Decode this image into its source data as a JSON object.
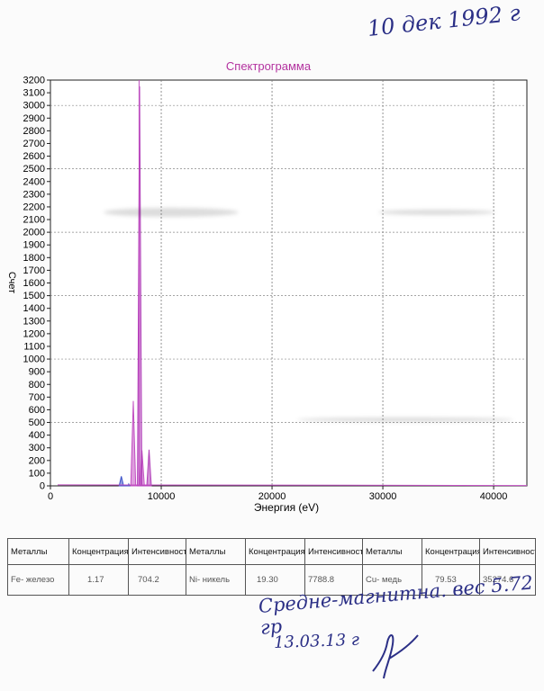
{
  "handwriting": {
    "top_date": "10 дек 1992 г",
    "note": "Средне-магнитна. вес 5.72 гр",
    "bottom_date": "13.03.13 г"
  },
  "colors": {
    "fe": "#3b52c9",
    "ni": "#c24fc2",
    "cu": "#b03cb8",
    "title": "#b3329f"
  },
  "chart_data": {
    "type": "line",
    "title": "Спектрограмма",
    "xlabel": "Энергия (eV)",
    "ylabel": "Счет",
    "xlim": [
      0,
      43000
    ],
    "ylim": [
      0,
      3200
    ],
    "x_ticks": [
      0,
      10000,
      20000,
      30000,
      40000
    ],
    "y_ticks": [
      0,
      100,
      200,
      300,
      400,
      500,
      600,
      700,
      800,
      900,
      1000,
      1100,
      1200,
      1300,
      1400,
      1500,
      1600,
      1700,
      1800,
      1900,
      2000,
      2100,
      2200,
      2300,
      2400,
      2500,
      2600,
      2700,
      2800,
      2900,
      3000,
      3100,
      3200
    ],
    "grid": true,
    "marker_x": 8000,
    "series": [
      {
        "color": "#3b52c9",
        "points": [
          [
            6200,
            0
          ],
          [
            6400,
            75
          ],
          [
            6600,
            0
          ],
          [
            7000,
            0
          ],
          [
            7060,
            15
          ],
          [
            7150,
            0
          ]
        ]
      },
      {
        "color": "#c24fc2",
        "points": [
          [
            7250,
            0
          ],
          [
            7480,
            670
          ],
          [
            7700,
            0
          ],
          [
            8050,
            0
          ],
          [
            8260,
            280
          ],
          [
            8480,
            0
          ]
        ]
      },
      {
        "color": "#b03cb8",
        "points": [
          [
            7850,
            0
          ],
          [
            8050,
            3150
          ],
          [
            8250,
            0
          ],
          [
            8700,
            0
          ],
          [
            8900,
            285
          ],
          [
            9100,
            0
          ]
        ]
      }
    ]
  },
  "table": {
    "headers": [
      "Металлы",
      "Концентрация",
      "Интенсивност",
      "Металлы",
      "Концентрация",
      "Интенсивност",
      "Металлы",
      "Концентрация",
      "Интенсивност"
    ],
    "row": [
      "Fe- железо",
      "1.17",
      "704.2",
      "Ni- никель",
      "19.30",
      "7788.8",
      "Cu- медь",
      "79.53",
      "35274.6"
    ]
  }
}
